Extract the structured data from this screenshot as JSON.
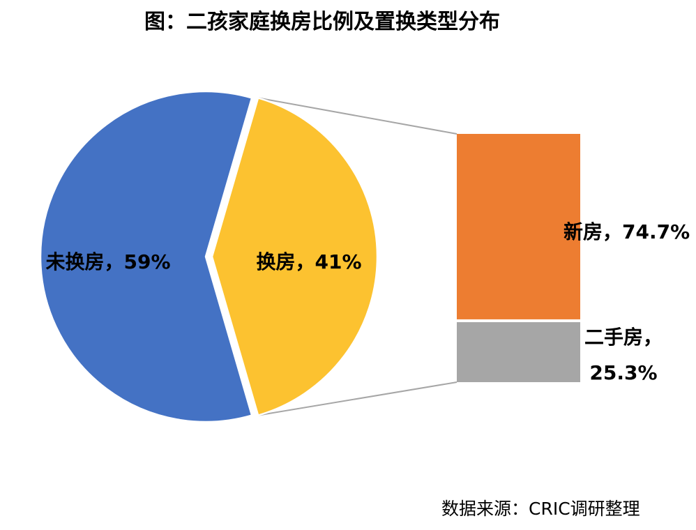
{
  "title": "图：二孩家庭换房比例及置换类型分布",
  "labels": {
    "not_changed": "未换房，59%",
    "changed": "换房，41%",
    "new_home": "新房，74.7%",
    "secondhand_line1": "二手房，",
    "secondhand_line2": "25.3%"
  },
  "source": "数据来源：CRIC调研整理",
  "colors": {
    "not_changed_slice": "#4472C4",
    "changed_slice": "#FCC230",
    "new_home_bar": "#ED7D31",
    "secondhand_bar": "#A6A6A6",
    "connector_line": "#A6A6A6",
    "slice_border": "#FFFFFF",
    "label_text": "#000000"
  },
  "chart_data": {
    "type": "pie",
    "variant": "bar-of-pie",
    "title": "图：二孩家庭换房比例及置换类型分布",
    "legend": "none",
    "pie": {
      "slices": [
        {
          "label": "未换房",
          "value": 59,
          "color": "#4472C4"
        },
        {
          "label": "换房",
          "value": 41,
          "color": "#FCC230"
        }
      ]
    },
    "breakdown_bar": {
      "of_slice": "换房",
      "segments": [
        {
          "label": "新房",
          "value": 74.7,
          "color": "#ED7D31"
        },
        {
          "label": "二手房",
          "value": 25.3,
          "color": "#A6A6A6"
        }
      ]
    },
    "source": "数据来源：CRIC调研整理"
  }
}
